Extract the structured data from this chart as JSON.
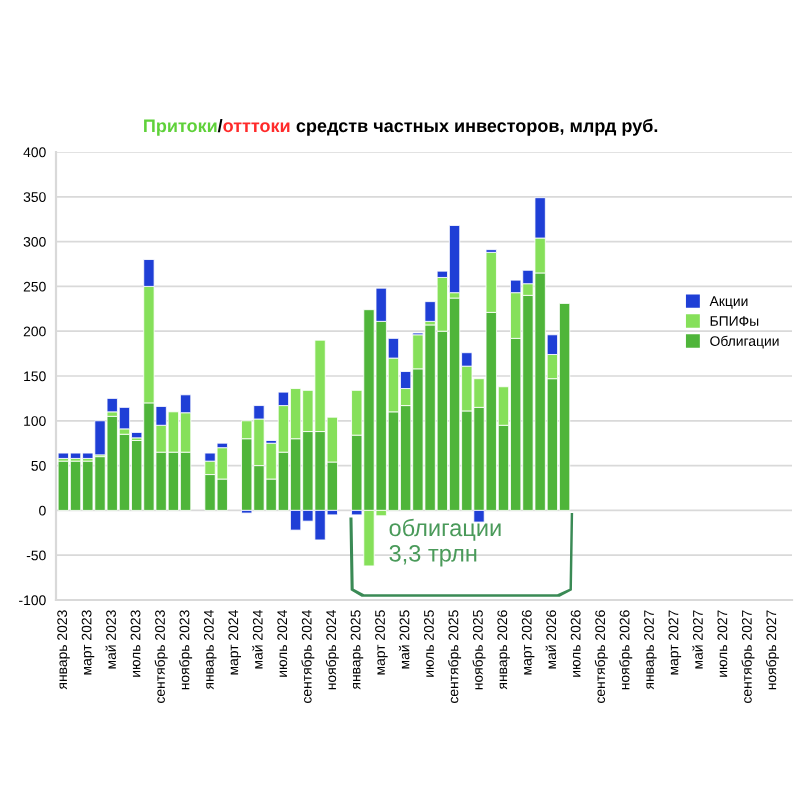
{
  "chart_data": {
    "type": "bar",
    "stacked": true,
    "title": "Притоки/отттоки средств частных инвесторов, млрд руб.",
    "categories": [
      "январь 2023",
      null,
      "март 2023",
      null,
      "май 2023",
      null,
      "июль 2023",
      null,
      "сентябрь 2023",
      null,
      "ноябрь 2023",
      null,
      "январь 2024",
      null,
      "март 2024",
      null,
      "май 2024",
      null,
      "июль 2024",
      null,
      "сентябрь 2024",
      null,
      "ноябрь 2024",
      null,
      "январь 2025",
      null,
      "март 2025",
      null,
      "май 2025",
      null,
      "июль 2025",
      null,
      "сентябрь 2025",
      null,
      "ноябрь 2025",
      null,
      "январь 2026",
      null,
      "март 2026",
      null,
      "май 2026",
      null,
      "июль 2026",
      null,
      "сентябрь 2026",
      null,
      "ноябрь 2026",
      null,
      "январь 2027",
      null,
      "март 2027",
      null,
      "май 2027",
      null,
      "июль 2027",
      null,
      "сентябрь 2027",
      null,
      "ноябрь 2027",
      null
    ],
    "series": [
      {
        "name": "Облигации",
        "color": "#4fb53a",
        "values": [
          55,
          55,
          55,
          60,
          105,
          85,
          78,
          120,
          65,
          65,
          65,
          null,
          40,
          35,
          null,
          80,
          50,
          35,
          65,
          80,
          88,
          88,
          54,
          null,
          84,
          224,
          211,
          110,
          117,
          158,
          207,
          200,
          237,
          111,
          115,
          221,
          95,
          192,
          240,
          265,
          147,
          231,
          null,
          null,
          null,
          null,
          null,
          null,
          null,
          null,
          null,
          null,
          null,
          null,
          null,
          null,
          null,
          null,
          null,
          null
        ]
      },
      {
        "name": "БПИФы",
        "color": "#86e05a",
        "values": [
          3,
          3,
          3,
          2,
          5,
          6,
          3,
          130,
          30,
          45,
          44,
          null,
          15,
          35,
          null,
          20,
          52,
          40,
          52,
          56,
          46,
          102,
          50,
          null,
          50,
          -62,
          -6,
          60,
          19,
          38,
          4,
          60,
          6,
          50,
          32,
          67,
          43,
          51,
          13,
          39,
          27,
          null,
          null,
          null,
          null,
          null,
          null,
          null,
          null,
          null,
          null,
          null,
          null,
          null,
          null,
          null,
          null,
          null,
          null,
          null
        ]
      },
      {
        "name": "Акции",
        "color": "#1f3fd6",
        "values": [
          6,
          6,
          6,
          38,
          15,
          24,
          6,
          30,
          21,
          null,
          20,
          null,
          9,
          5,
          null,
          -3,
          15,
          3,
          15,
          -22,
          -12,
          -33,
          -5,
          null,
          -5,
          null,
          37,
          22,
          19,
          2,
          22,
          7,
          75,
          15,
          -13,
          3,
          null,
          14,
          15,
          45,
          22,
          null,
          null,
          null,
          null,
          null,
          null,
          null,
          null,
          null,
          null,
          null,
          null,
          null,
          null,
          null,
          null,
          null,
          null,
          null
        ]
      }
    ],
    "ylim": [
      -100,
      400
    ],
    "yticks": [
      -100,
      -50,
      0,
      50,
      100,
      150,
      200,
      250,
      300,
      350,
      400
    ],
    "grid": "y",
    "legend": "right",
    "annotations": [
      "облигации\n3,3 трлн"
    ]
  }
}
